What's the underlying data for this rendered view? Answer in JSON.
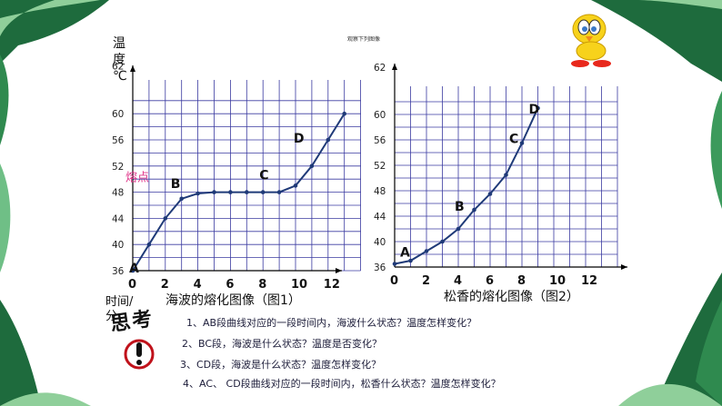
{
  "header_note": "观察下列图像",
  "question_mark_title": "思考",
  "questions": [
    "1、AB段曲线对应的一段时间内，海波什么状态？温度怎样变化？",
    "2、BC段，海波是什么状态？温度是否变化？",
    "3、CD段，海波是什么状态？温度怎样变化？",
    "4、AC、 CD段曲线对应的一段时间内，松香什么状态？温度怎样变化？"
  ],
  "colors": {
    "line": "#1f3a78",
    "grid": "#3a3aa0",
    "melting_label": "#e0358a",
    "leaf_dark": "#1e6b3d",
    "leaf_light": "#8fcf9a"
  },
  "chart_data": [
    {
      "type": "line",
      "title": "海波的熔化图像（图1）",
      "xlabel": "时间/分",
      "ylabel": "温度℃",
      "x_ticks": [
        "0",
        "2",
        "4",
        "6",
        "8",
        "10",
        "12"
      ],
      "y_ticks": [
        "36",
        "40",
        "44",
        "48",
        "52",
        "56",
        "60",
        "62"
      ],
      "xlim": [
        0,
        14
      ],
      "ylim": [
        36,
        64
      ],
      "grid": true,
      "series": [
        {
          "x": [
            0,
            1,
            2,
            3,
            4,
            5,
            6,
            7,
            8,
            9,
            10,
            11,
            12,
            13
          ],
          "y": [
            36,
            40,
            44,
            47,
            47.8,
            48,
            48,
            48,
            48,
            48,
            49,
            52,
            56,
            60
          ]
        }
      ],
      "point_labels": [
        {
          "text": "A",
          "x": 0,
          "y": 36
        },
        {
          "text": "B",
          "x": 3,
          "y": 47
        },
        {
          "text": "C",
          "x": 8,
          "y": 48
        },
        {
          "text": "D",
          "x": 11,
          "y": 52
        }
      ],
      "annotations": [
        {
          "text": "熔点",
          "y": 48
        }
      ]
    },
    {
      "type": "line",
      "title": "松香的熔化图像（图2）",
      "xlabel": "",
      "ylabel": "",
      "x_ticks": [
        "0",
        "2",
        "4",
        "6",
        "8",
        "10",
        "12"
      ],
      "y_ticks": [
        "36",
        "40",
        "44",
        "48",
        "52",
        "56",
        "60",
        "62"
      ],
      "xlim": [
        0,
        14
      ],
      "ylim": [
        36,
        64
      ],
      "grid": true,
      "series": [
        {
          "x": [
            0,
            1,
            2,
            3,
            4,
            5,
            6,
            7,
            8,
            9
          ],
          "y": [
            36.5,
            37,
            38.5,
            40,
            42,
            45,
            47.5,
            50.5,
            55.5,
            61
          ]
        }
      ],
      "point_labels": [
        {
          "text": "A",
          "x": 0,
          "y": 36.5
        },
        {
          "text": "B",
          "x": 4,
          "y": 42
        },
        {
          "text": "C",
          "x": 8,
          "y": 55.5
        },
        {
          "text": "D",
          "x": 9,
          "y": 61
        }
      ],
      "annotations": []
    }
  ]
}
